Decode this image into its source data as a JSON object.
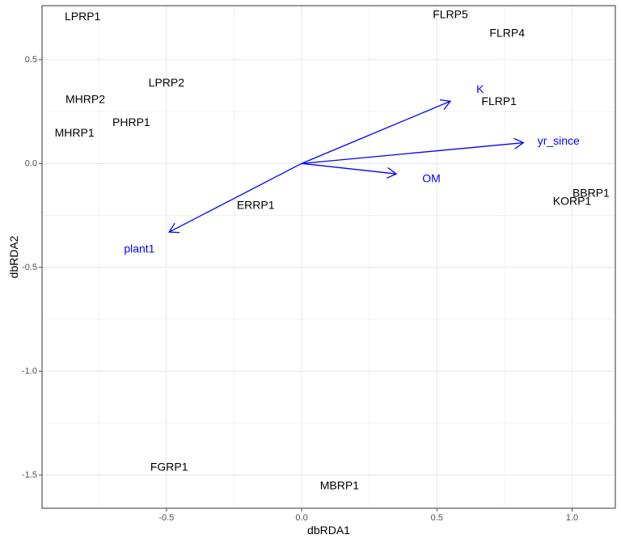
{
  "chart_data": {
    "type": "scatter",
    "xlabel": "dbRDA1",
    "ylabel": "dbRDA2",
    "xlim": [
      -0.96,
      1.16
    ],
    "ylim": [
      -1.66,
      0.76
    ],
    "x_ticks": [
      -0.5,
      0.0,
      0.5,
      1.0
    ],
    "x_tick_labels": [
      "-0.5",
      "0.0",
      "0.5",
      "1.0"
    ],
    "y_ticks": [
      -1.5,
      -1.0,
      -0.5,
      0.0,
      0.5
    ],
    "y_tick_labels": [
      "-1.5",
      "-1.0",
      "-0.5",
      "0.0",
      "0.5"
    ],
    "grid": true,
    "sites": [
      {
        "name": "LPRP1",
        "x": -0.81,
        "y": 0.71
      },
      {
        "name": "LPRP2",
        "x": -0.5,
        "y": 0.39
      },
      {
        "name": "MHRP2",
        "x": -0.8,
        "y": 0.31
      },
      {
        "name": "PHRP1",
        "x": -0.63,
        "y": 0.2
      },
      {
        "name": "MHRP1",
        "x": -0.84,
        "y": 0.15
      },
      {
        "name": "ERRP1",
        "x": -0.17,
        "y": -0.2
      },
      {
        "name": "FLRP5",
        "x": 0.55,
        "y": 0.72
      },
      {
        "name": "FLRP4",
        "x": 0.76,
        "y": 0.63
      },
      {
        "name": "FLRP1",
        "x": 0.73,
        "y": 0.3
      },
      {
        "name": "BBRP1",
        "x": 1.07,
        "y": -0.14
      },
      {
        "name": "KORP1",
        "x": 1.0,
        "y": -0.18
      },
      {
        "name": "FGRP1",
        "x": -0.49,
        "y": -1.46
      },
      {
        "name": "MBRP1",
        "x": 0.14,
        "y": -1.55
      }
    ],
    "vectors": [
      {
        "name": "K",
        "x": 0.55,
        "y": 0.3,
        "label_x": 0.66,
        "label_y": 0.36
      },
      {
        "name": "yr_since",
        "x": 0.82,
        "y": 0.1,
        "label_x": 0.95,
        "label_y": 0.11
      },
      {
        "name": "OM",
        "x": 0.35,
        "y": -0.05,
        "label_x": 0.48,
        "label_y": -0.07
      },
      {
        "name": "plant1",
        "x": -0.49,
        "y": -0.33,
        "label_x": -0.6,
        "label_y": -0.41
      }
    ],
    "vector_color": "#0000ff",
    "text_color": "#000000",
    "grid_color": "#ebebeb",
    "panel_border_color": "#333333",
    "tick_color": "#4d4d4d"
  }
}
